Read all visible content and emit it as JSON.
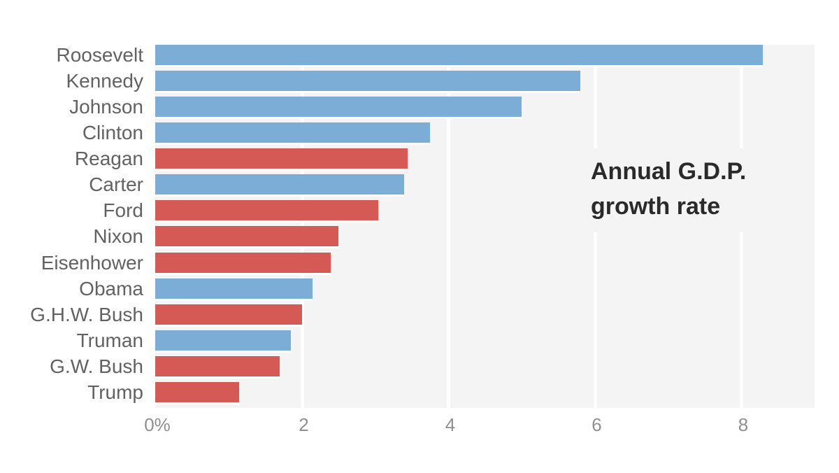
{
  "chart_data": {
    "type": "bar",
    "orientation": "horizontal",
    "title": "Annual G.D.P. growth rate",
    "xlabel": "",
    "ylabel": "",
    "xlim": [
      0,
      9
    ],
    "grid": "white vertical gridlines on light gray panel",
    "legend": "none",
    "rows": [
      {
        "label": "Roosevelt",
        "value": 8.3,
        "party": "democrat"
      },
      {
        "label": "Kennedy",
        "value": 5.8,
        "party": "democrat"
      },
      {
        "label": "Johnson",
        "value": 5.0,
        "party": "democrat"
      },
      {
        "label": "Clinton",
        "value": 3.75,
        "party": "democrat"
      },
      {
        "label": "Reagan",
        "value": 3.45,
        "party": "republican"
      },
      {
        "label": "Carter",
        "value": 3.4,
        "party": "democrat"
      },
      {
        "label": "Ford",
        "value": 3.05,
        "party": "republican"
      },
      {
        "label": "Nixon",
        "value": 2.5,
        "party": "republican"
      },
      {
        "label": "Eisenhower",
        "value": 2.4,
        "party": "republican"
      },
      {
        "label": "Obama",
        "value": 2.15,
        "party": "democrat"
      },
      {
        "label": "G.H.W. Bush",
        "value": 2.0,
        "party": "republican"
      },
      {
        "label": "Truman",
        "value": 1.85,
        "party": "democrat"
      },
      {
        "label": "G.W. Bush",
        "value": 1.7,
        "party": "republican"
      },
      {
        "label": "Trump",
        "value": 1.15,
        "party": "republican"
      }
    ],
    "xticks": [
      {
        "label": "0%",
        "value": 0
      },
      {
        "label": "2",
        "value": 2
      },
      {
        "label": "4",
        "value": 4
      },
      {
        "label": "6",
        "value": 6
      },
      {
        "label": "8",
        "value": 8
      }
    ]
  },
  "annotation": {
    "line1": "Annual G.D.P.",
    "line2": "growth rate"
  },
  "colors": {
    "democrat": "#7badd6",
    "republican": "#d55a55",
    "panel_bg": "#f4f4f4",
    "gridline": "#ffffff",
    "category_label": "#626262",
    "tick_label": "#8f8f8f",
    "annotation_text": "#2a2a2a",
    "bar_edge": "#ffffff"
  }
}
